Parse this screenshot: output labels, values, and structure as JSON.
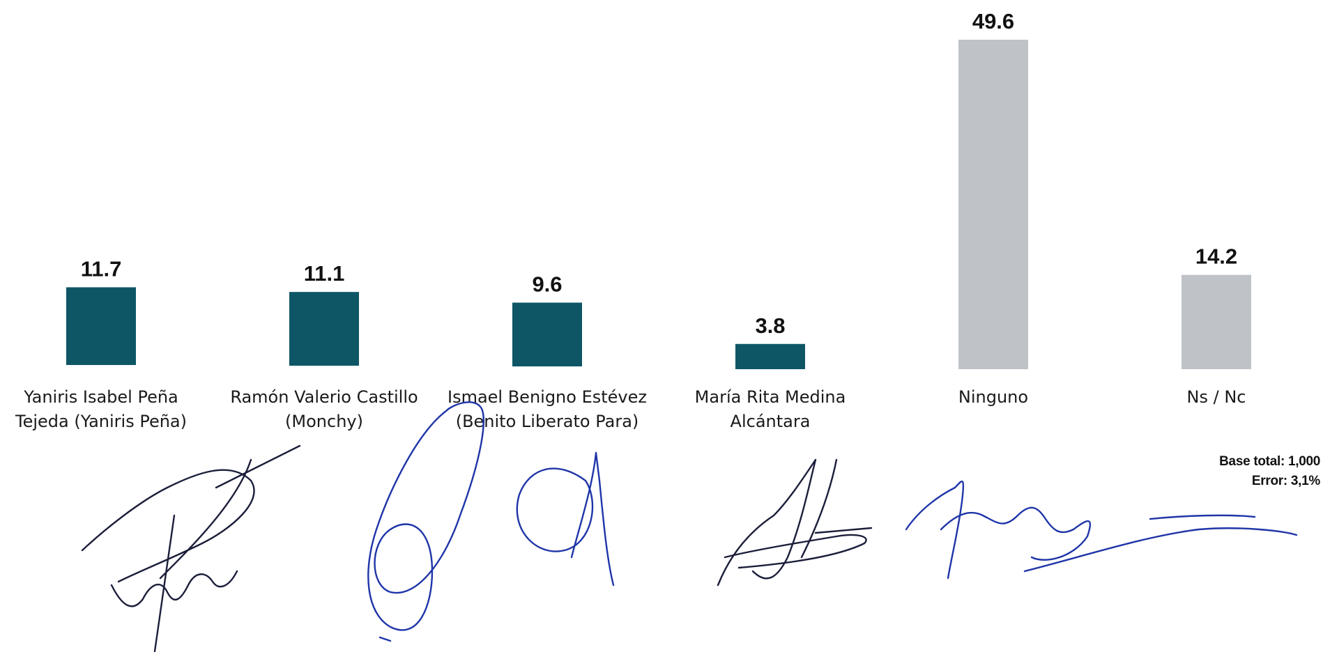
{
  "chart_data": {
    "type": "bar",
    "categories": [
      [
        "Yaniris Isabel Peña",
        "Tejeda (Yaniris Peña)"
      ],
      [
        "Ramón Valerio Castillo",
        "(Monchy)"
      ],
      [
        "Ismael Benigno Estévez",
        "(Benito Liberato Para)"
      ],
      [
        "María Rita Medina",
        "Alcántara"
      ],
      [
        "Ninguno"
      ],
      [
        "Ns / Nc"
      ]
    ],
    "values": [
      11.7,
      11.1,
      9.6,
      3.8,
      49.6,
      14.2
    ],
    "value_labels": [
      "11.7",
      "11.1",
      "9.6",
      "3.8",
      "49.6",
      "14.2"
    ],
    "bar_colors": [
      "#0e5666",
      "#0e5666",
      "#0e5666",
      "#0e5666",
      "#bfc3c8",
      "#bfc3c8"
    ],
    "title": "",
    "xlabel": "",
    "ylabel": "",
    "ylim": [
      0,
      49.6
    ],
    "grid": false,
    "legend": "none"
  },
  "notes": {
    "base": "Base total: 1,000",
    "error": "Error: 3,1%"
  },
  "colors": {
    "candidate_bar": "#0e5666",
    "other_bar": "#bfc3c8",
    "signature_ink": "#1f35a8"
  }
}
